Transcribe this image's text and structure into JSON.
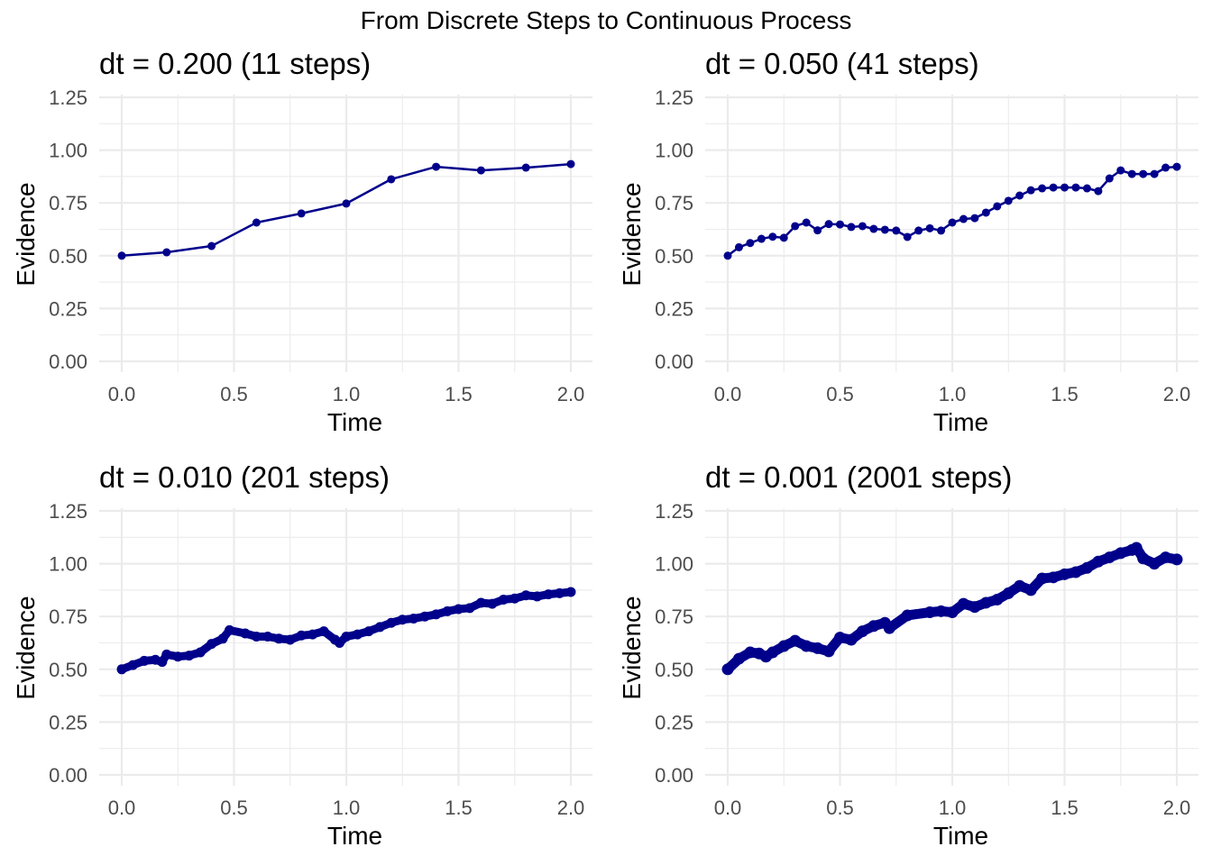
{
  "chart_data": {
    "title": "From Discrete Steps to Continuous Process",
    "type": "line",
    "line_color": "#00008B",
    "grid": true,
    "panels": [
      {
        "title": "dt = 0.200 (11 steps)",
        "type": "line",
        "xlabel": "Time",
        "ylabel": "Evidence",
        "xlim": [
          0,
          2
        ],
        "ylim": [
          0,
          1.25
        ],
        "xticks": [
          "0.0",
          "0.5",
          "1.0",
          "1.5",
          "2.0"
        ],
        "yticks": [
          "0.00",
          "0.25",
          "0.50",
          "0.75",
          "1.00",
          "1.25"
        ],
        "marker": "point",
        "x": [
          0.0,
          0.2,
          0.4,
          0.6,
          0.8,
          1.0,
          1.2,
          1.4,
          1.6,
          1.8,
          2.0
        ],
        "y": [
          0.5,
          0.516,
          0.546,
          0.657,
          0.7,
          0.747,
          0.862,
          0.921,
          0.904,
          0.917,
          0.934
        ]
      },
      {
        "title": "dt = 0.050 (41 steps)",
        "type": "line",
        "xlabel": "Time",
        "ylabel": "Evidence",
        "xlim": [
          0,
          2
        ],
        "ylim": [
          0,
          1.25
        ],
        "xticks": [
          "0.0",
          "0.5",
          "1.0",
          "1.5",
          "2.0"
        ],
        "yticks": [
          "0.00",
          "0.25",
          "0.50",
          "0.75",
          "1.00",
          "1.25"
        ],
        "marker": "point",
        "x": [
          0.0,
          0.05,
          0.1,
          0.15,
          0.2,
          0.25,
          0.3,
          0.35,
          0.4,
          0.45,
          0.5,
          0.55,
          0.6,
          0.65,
          0.7,
          0.75,
          0.8,
          0.85,
          0.9,
          0.95,
          1.0,
          1.05,
          1.1,
          1.15,
          1.2,
          1.25,
          1.3,
          1.35,
          1.4,
          1.45,
          1.5,
          1.55,
          1.6,
          1.65,
          1.7,
          1.75,
          1.8,
          1.85,
          1.9,
          1.95,
          2.0
        ],
        "y": [
          0.5,
          0.54,
          0.56,
          0.58,
          0.59,
          0.585,
          0.64,
          0.657,
          0.62,
          0.65,
          0.648,
          0.636,
          0.64,
          0.627,
          0.623,
          0.619,
          0.589,
          0.619,
          0.63,
          0.619,
          0.657,
          0.674,
          0.678,
          0.704,
          0.734,
          0.76,
          0.785,
          0.81,
          0.819,
          0.823,
          0.823,
          0.823,
          0.819,
          0.806,
          0.866,
          0.904,
          0.887,
          0.887,
          0.887,
          0.917,
          0.921
        ]
      },
      {
        "title": "dt = 0.010 (201 steps)",
        "type": "line",
        "xlabel": "Time",
        "ylabel": "Evidence",
        "xlim": [
          0,
          2
        ],
        "ylim": [
          0,
          1.25
        ],
        "xticks": [
          "0.0",
          "0.5",
          "1.0",
          "1.5",
          "2.0"
        ],
        "yticks": [
          "0.00",
          "0.25",
          "0.50",
          "0.75",
          "1.00",
          "1.25"
        ],
        "marker": "point",
        "approximate_path": true,
        "x": [
          0.0,
          0.05,
          0.1,
          0.15,
          0.18,
          0.2,
          0.25,
          0.3,
          0.35,
          0.4,
          0.45,
          0.48,
          0.55,
          0.6,
          0.65,
          0.7,
          0.75,
          0.8,
          0.85,
          0.9,
          0.95,
          0.97,
          1.0,
          1.05,
          1.1,
          1.15,
          1.2,
          1.25,
          1.3,
          1.35,
          1.4,
          1.45,
          1.5,
          1.55,
          1.6,
          1.65,
          1.7,
          1.75,
          1.8,
          1.85,
          1.9,
          1.95,
          2.0
        ],
        "y": [
          0.5,
          0.52,
          0.54,
          0.545,
          0.535,
          0.57,
          0.56,
          0.565,
          0.58,
          0.62,
          0.645,
          0.685,
          0.67,
          0.655,
          0.655,
          0.645,
          0.64,
          0.66,
          0.665,
          0.68,
          0.64,
          0.625,
          0.655,
          0.665,
          0.68,
          0.7,
          0.72,
          0.735,
          0.74,
          0.75,
          0.76,
          0.775,
          0.785,
          0.79,
          0.815,
          0.81,
          0.83,
          0.835,
          0.85,
          0.845,
          0.855,
          0.86,
          0.866
        ]
      },
      {
        "title": "dt = 0.001 (2001 steps)",
        "type": "line",
        "xlabel": "Time",
        "ylabel": "Evidence",
        "xlim": [
          0,
          2
        ],
        "ylim": [
          0,
          1.25
        ],
        "xticks": [
          "0.0",
          "0.5",
          "1.0",
          "1.5",
          "2.0"
        ],
        "yticks": [
          "0.00",
          "0.25",
          "0.50",
          "0.75",
          "1.00",
          "1.25"
        ],
        "marker": "point",
        "approximate_path": true,
        "x": [
          0.0,
          0.05,
          0.1,
          0.14,
          0.17,
          0.2,
          0.25,
          0.3,
          0.35,
          0.4,
          0.45,
          0.5,
          0.55,
          0.6,
          0.65,
          0.7,
          0.72,
          0.8,
          0.9,
          0.95,
          1.0,
          1.05,
          1.1,
          1.15,
          1.2,
          1.25,
          1.3,
          1.35,
          1.4,
          1.45,
          1.5,
          1.55,
          1.6,
          1.65,
          1.7,
          1.75,
          1.8,
          1.82,
          1.85,
          1.9,
          1.95,
          2.0
        ],
        "y": [
          0.5,
          0.55,
          0.58,
          0.575,
          0.56,
          0.58,
          0.61,
          0.635,
          0.61,
          0.6,
          0.585,
          0.65,
          0.64,
          0.68,
          0.705,
          0.72,
          0.695,
          0.755,
          0.77,
          0.775,
          0.77,
          0.81,
          0.795,
          0.815,
          0.83,
          0.86,
          0.895,
          0.875,
          0.93,
          0.935,
          0.95,
          0.96,
          0.98,
          1.01,
          1.03,
          1.05,
          1.065,
          1.075,
          1.025,
          1.0,
          1.03,
          1.02
        ]
      }
    ]
  }
}
